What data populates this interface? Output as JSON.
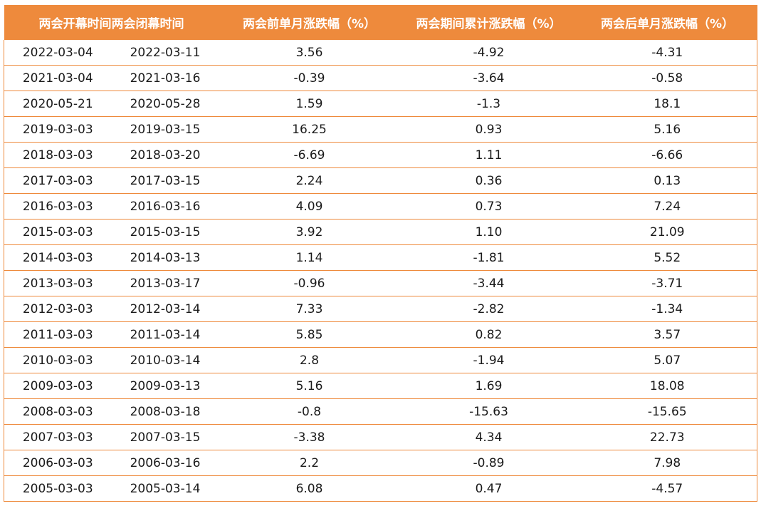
{
  "table": {
    "headers": [
      "两会开幕时间",
      "两会闭幕时间",
      "两会前单月涨跌幅（%）",
      "两会期间累计涨跌幅（%）",
      "两会后单月涨跌幅（%）"
    ],
    "rows": [
      [
        "2022-03-04",
        "2022-03-11",
        "3.56",
        "-4.92",
        "-4.31"
      ],
      [
        "2021-03-04",
        "2021-03-16",
        "-0.39",
        "-3.64",
        "-0.58"
      ],
      [
        "2020-05-21",
        "2020-05-28",
        "1.59",
        "-1.3",
        "18.1"
      ],
      [
        "2019-03-03",
        "2019-03-15",
        "16.25",
        "0.93",
        "5.16"
      ],
      [
        "2018-03-03",
        "2018-03-20",
        "-6.69",
        "1.11",
        "-6.66"
      ],
      [
        "2017-03-03",
        "2017-03-15",
        "2.24",
        "0.36",
        "0.13"
      ],
      [
        "2016-03-03",
        "2016-03-16",
        "4.09",
        "0.73",
        "7.24"
      ],
      [
        "2015-03-03",
        "2015-03-15",
        "3.92",
        "1.10",
        "21.09"
      ],
      [
        "2014-03-03",
        "2014-03-13",
        "1.14",
        "-1.81",
        "5.52"
      ],
      [
        "2013-03-03",
        "2013-03-17",
        "-0.96",
        "-3.44",
        "-3.71"
      ],
      [
        "2012-03-03",
        "2012-03-14",
        "7.33",
        "-2.82",
        "-1.34"
      ],
      [
        "2011-03-03",
        "2011-03-14",
        "5.85",
        "0.82",
        "3.57"
      ],
      [
        "2010-03-03",
        "2010-03-14",
        "2.8",
        "-1.94",
        "5.07"
      ],
      [
        "2009-03-03",
        "2009-03-13",
        "5.16",
        "1.69",
        "18.08"
      ],
      [
        "2008-03-03",
        "2008-03-18",
        "-0.8",
        "-15.63",
        "-15.65"
      ],
      [
        "2007-03-03",
        "2007-03-15",
        "-3.38",
        "4.34",
        "22.73"
      ],
      [
        "2006-03-03",
        "2006-03-16",
        "2.2",
        "-0.89",
        "7.98"
      ],
      [
        "2005-03-03",
        "2005-03-14",
        "6.08",
        "0.47",
        "-4.57"
      ]
    ]
  },
  "colors": {
    "header_bg": "#ee8a3c",
    "header_text": "#ffffff",
    "border": "#ee8a3c",
    "cell_text": "#1a1a1a"
  }
}
